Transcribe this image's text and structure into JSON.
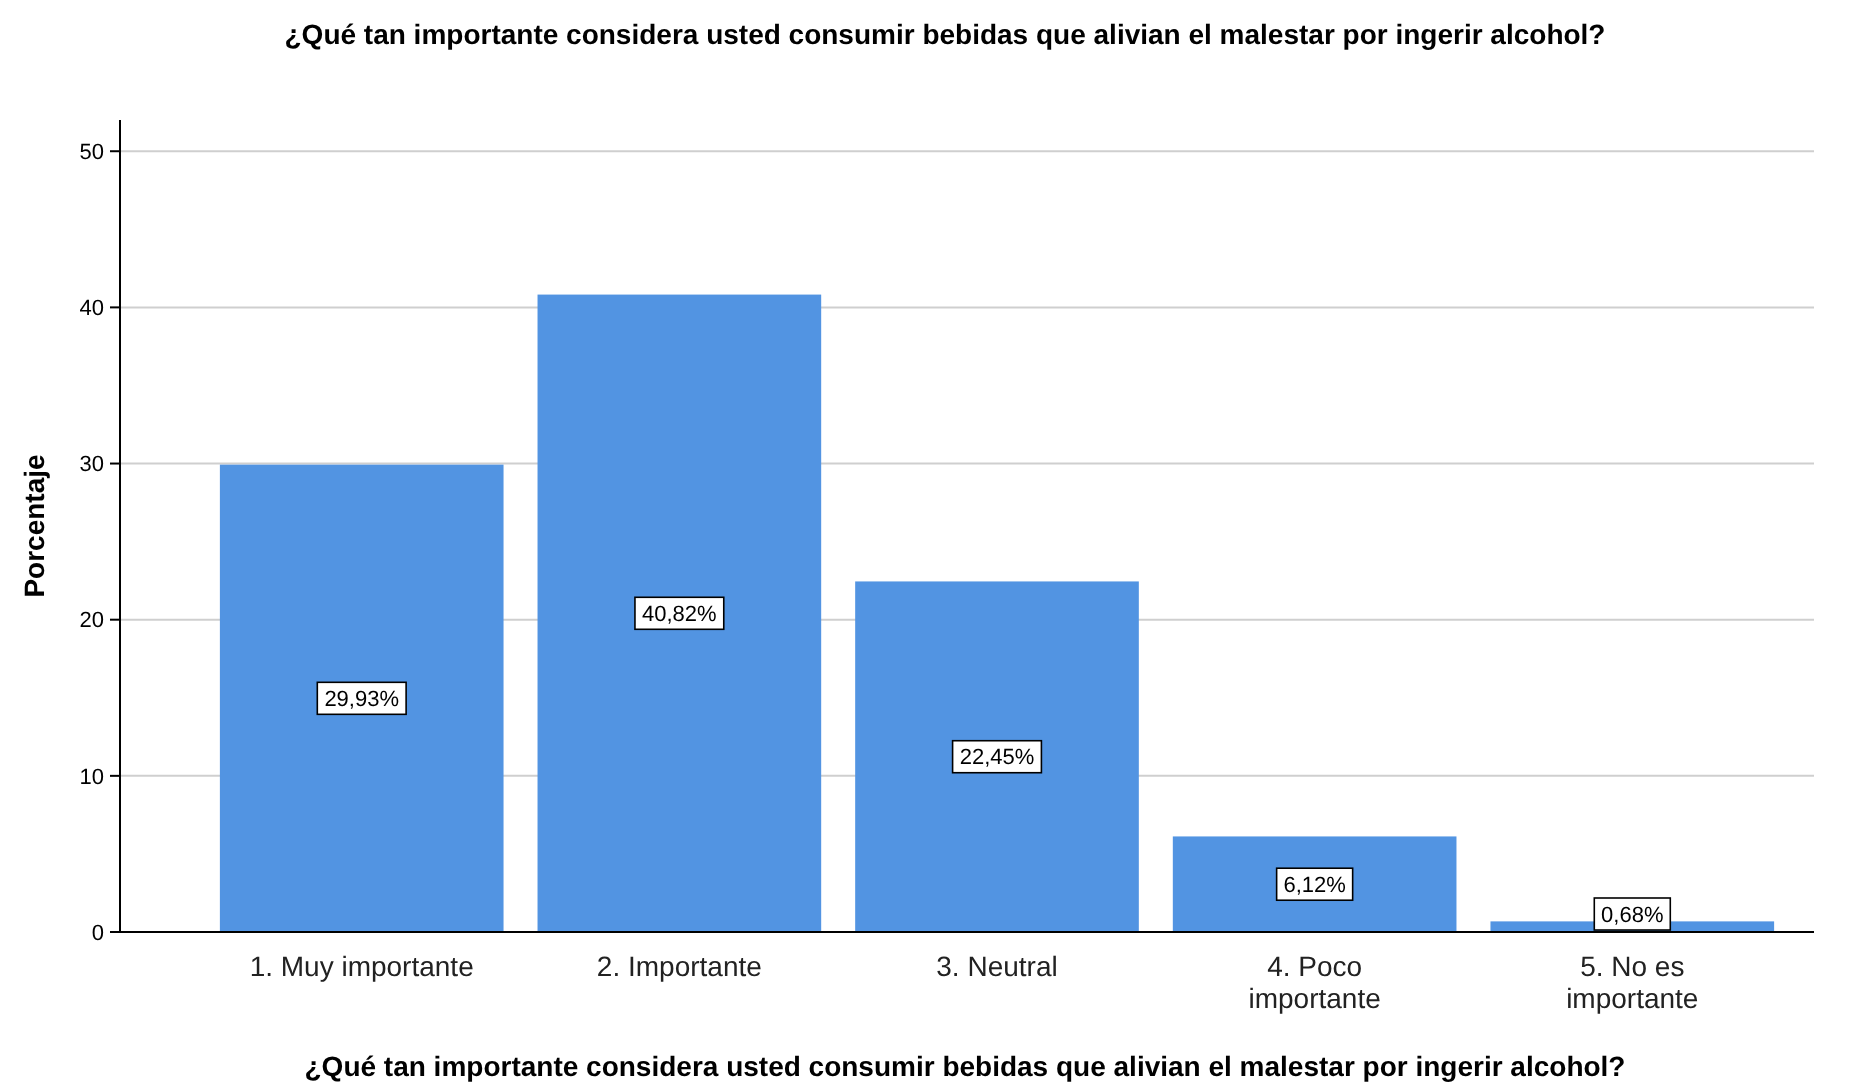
{
  "chart_data": {
    "type": "bar",
    "title": "¿Qué tan importante considera usted consumir bebidas que alivian el malestar por ingerir alcohol?",
    "xlabel": "¿Qué tan importante considera usted consumir bebidas que alivian el malestar por ingerir alcohol?",
    "ylabel": "Porcentaje",
    "categories": [
      "1. Muy importante",
      "2. Importante",
      "3. Neutral",
      "4. Poco importante",
      "5. No es importante"
    ],
    "values": [
      29.93,
      40.82,
      22.45,
      6.12,
      0.68
    ],
    "value_labels": [
      "29,93%",
      "40,82%",
      "22,45%",
      "6,12%",
      "0,68%"
    ],
    "color": "#5294e2",
    "ylim": [
      0,
      52
    ],
    "yticks": [
      0,
      10,
      20,
      30,
      40,
      50
    ],
    "grid": "y"
  }
}
